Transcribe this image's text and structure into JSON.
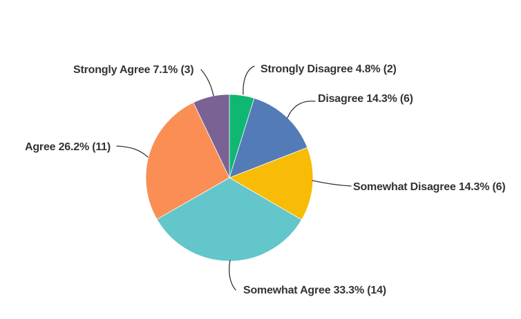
{
  "figure": {
    "background": "#FFFFFF"
  },
  "chart_data": {
    "type": "pie",
    "title": "",
    "legend_position": "none",
    "label_style": "outside-callouts",
    "start_angle_deg": 0,
    "direction": "clockwise",
    "text_color": "#333333",
    "leader_line_color": "#333333",
    "slices": [
      {
        "label": "Strongly Disagree",
        "pct": 4.8,
        "count": 2,
        "color": "#0EB873",
        "display": "Strongly Disagree 4.8% (2)"
      },
      {
        "label": "Disagree",
        "pct": 14.3,
        "count": 6,
        "color": "#527BB8",
        "display": "Disagree 14.3% (6)"
      },
      {
        "label": "Somewhat Disagree",
        "pct": 14.3,
        "count": 6,
        "color": "#F8BB06",
        "display": "Somewhat Disagree 14.3% (6)"
      },
      {
        "label": "Somewhat Agree",
        "pct": 33.3,
        "count": 14,
        "color": "#63C6CA",
        "display": "Somewhat Agree 33.3% (14)"
      },
      {
        "label": "Agree",
        "pct": 26.2,
        "count": 11,
        "color": "#FA8E55",
        "display": "Agree 26.2% (11)"
      },
      {
        "label": "Strongly Agree",
        "pct": 7.1,
        "count": 3,
        "color": "#7B6295",
        "display": "Strongly Agree 7.1% (3)"
      }
    ]
  }
}
